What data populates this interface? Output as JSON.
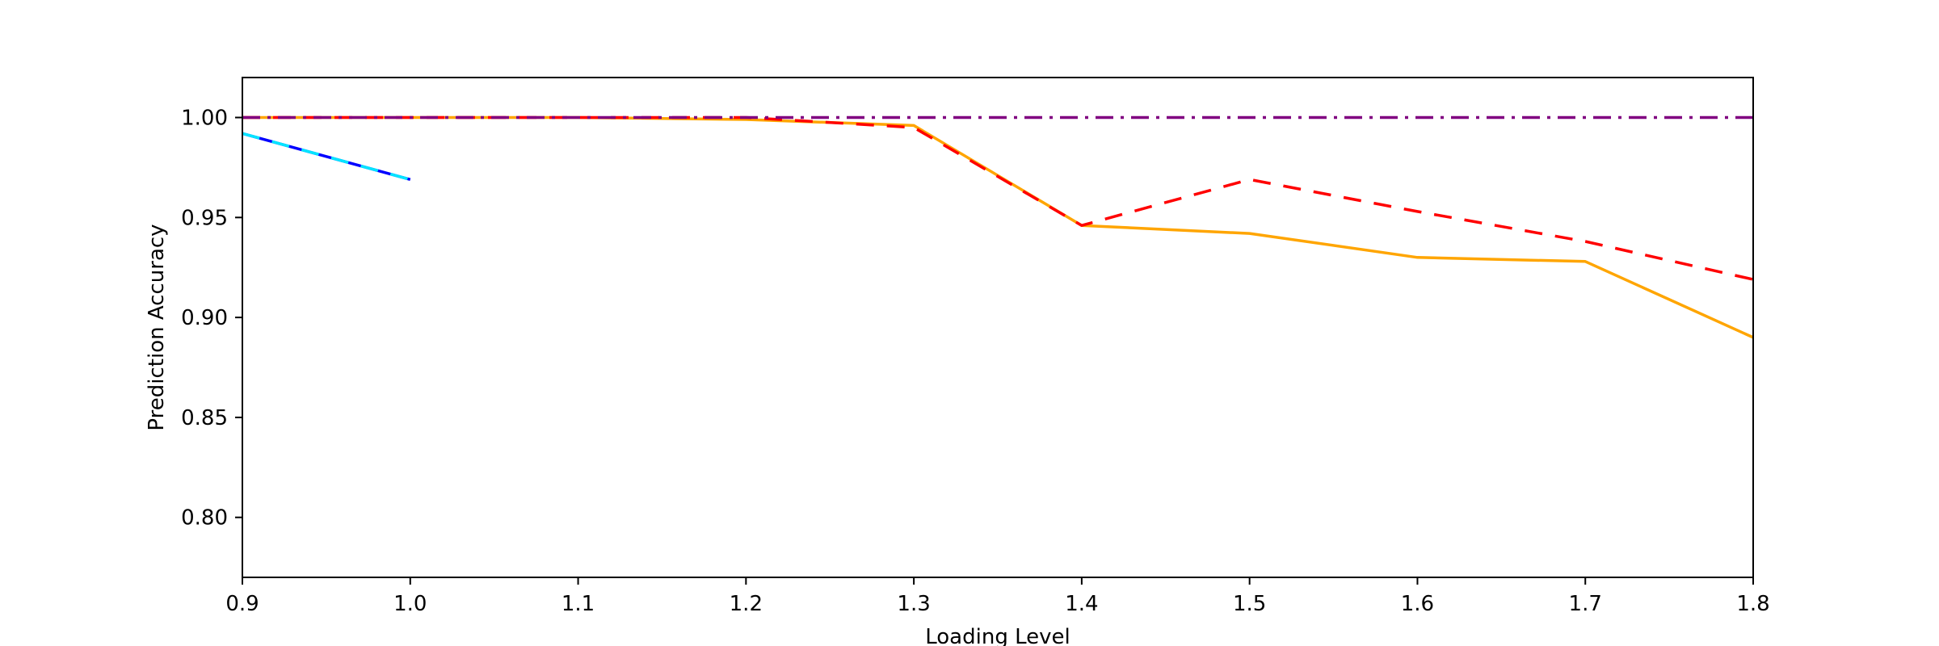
{
  "chart_data": {
    "type": "line",
    "title": "",
    "xlabel": "Loading Level",
    "ylabel": "Prediction Accuracy",
    "xlim": [
      0.9,
      1.8
    ],
    "ylim": [
      0.77,
      1.02
    ],
    "x_ticks": [
      "0.9",
      "1.0",
      "1.1",
      "1.2",
      "1.3",
      "1.4",
      "1.5",
      "1.6",
      "1.7",
      "1.8"
    ],
    "y_ticks": [
      "0.80",
      "0.85",
      "0.90",
      "0.95",
      "1.00"
    ],
    "grid": false,
    "legend": "none",
    "series": [
      {
        "color": "#ffa500",
        "style": "solid",
        "x": [
          0.9,
          1.0,
          1.1,
          1.2,
          1.3,
          1.4,
          1.5,
          1.6,
          1.7,
          1.8
        ],
        "y": [
          1.0,
          1.0,
          1.0,
          0.999,
          0.996,
          0.946,
          0.942,
          0.93,
          0.928,
          0.89
        ]
      },
      {
        "color": "#ff0000",
        "style": "dashed",
        "x": [
          0.9,
          1.0,
          1.1,
          1.2,
          1.3,
          1.4,
          1.5,
          1.6,
          1.7,
          1.8
        ],
        "y": [
          1.0,
          1.0,
          1.0,
          1.0,
          0.995,
          0.946,
          0.969,
          0.953,
          0.938,
          0.919
        ]
      },
      {
        "color": "#800080",
        "style": "dashdot",
        "x": [
          0.9,
          1.0,
          1.1,
          1.2,
          1.3,
          1.4,
          1.5,
          1.6,
          1.7,
          1.8
        ],
        "y": [
          1.0,
          1.0,
          1.0,
          1.0,
          1.0,
          1.0,
          1.0,
          1.0,
          1.0,
          1.0
        ]
      },
      {
        "color": "#0000ff",
        "style": "solid",
        "x": [
          0.9,
          1.0
        ],
        "y": [
          0.992,
          0.969
        ]
      },
      {
        "color": "#00e5ff",
        "style": "dashed",
        "x": [
          0.9,
          1.0
        ],
        "y": [
          0.992,
          0.969
        ]
      }
    ]
  }
}
